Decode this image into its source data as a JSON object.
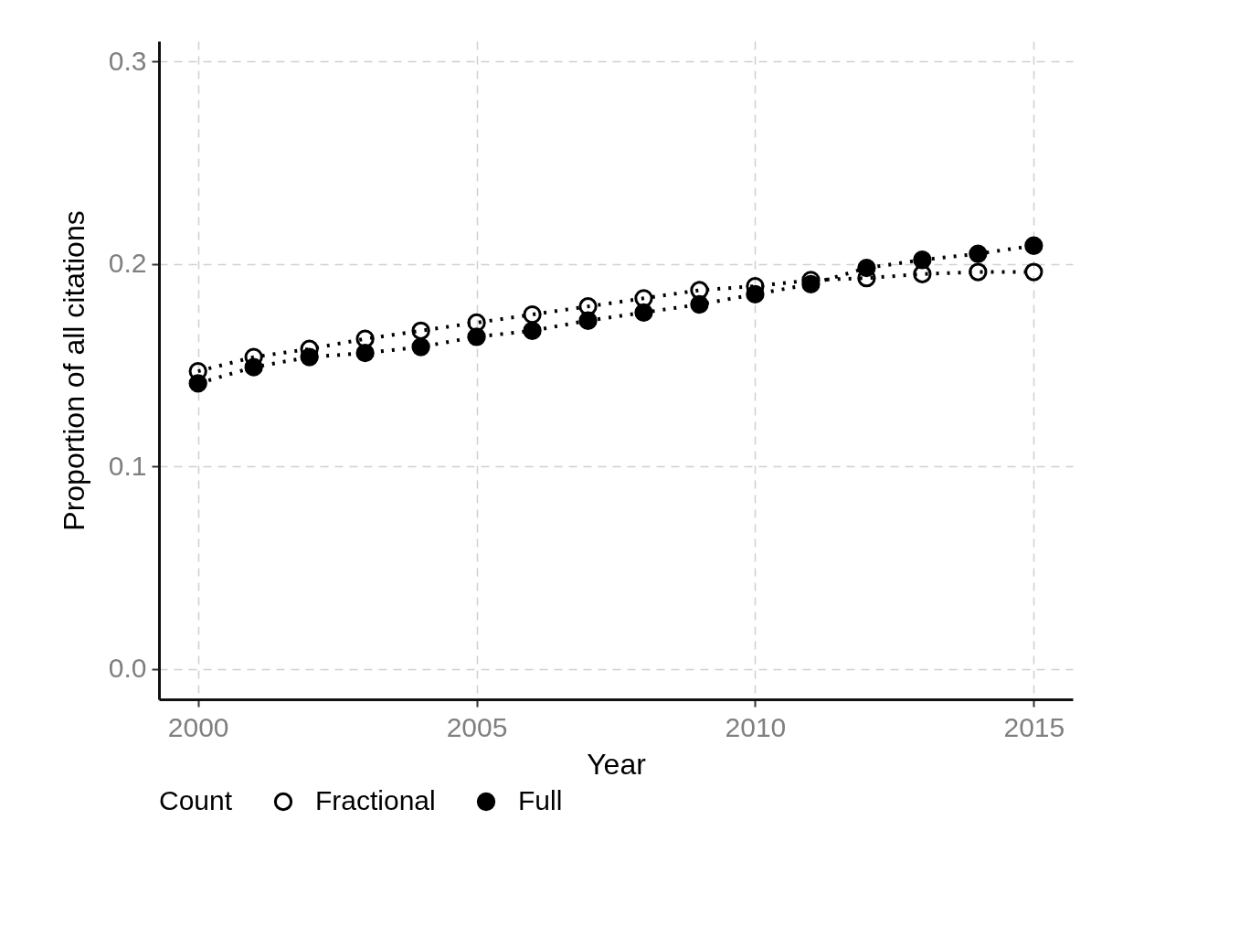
{
  "chart_data": {
    "type": "line",
    "xlabel": "Year",
    "ylabel": "Proportion of all citations",
    "legend_title": "Count",
    "x": [
      2000,
      2001,
      2002,
      2003,
      2004,
      2005,
      2006,
      2007,
      2008,
      2009,
      2010,
      2011,
      2012,
      2013,
      2014,
      2015
    ],
    "series": [
      {
        "name": "Fractional",
        "color": "#000000",
        "marker": "circle-open",
        "values": [
          0.147,
          0.154,
          0.158,
          0.163,
          0.167,
          0.171,
          0.175,
          0.179,
          0.183,
          0.187,
          0.189,
          0.192,
          0.193,
          0.195,
          0.196,
          0.196
        ]
      },
      {
        "name": "Full",
        "color": "#000000",
        "marker": "circle",
        "values": [
          0.141,
          0.149,
          0.154,
          0.156,
          0.159,
          0.164,
          0.167,
          0.172,
          0.176,
          0.18,
          0.185,
          0.19,
          0.198,
          0.202,
          0.205,
          0.209
        ]
      }
    ],
    "xlim": [
      1999.3,
      2015.7
    ],
    "xticks": [
      2000,
      2005,
      2010,
      2015
    ],
    "ylim": [
      -0.015,
      0.31
    ],
    "yticks": [
      {
        "value": 0,
        "label": "0.0"
      },
      0.1,
      0.2,
      0.3
    ],
    "grid": true,
    "legend": "bottom",
    "marker": "circle",
    "line_style": "dotted"
  }
}
